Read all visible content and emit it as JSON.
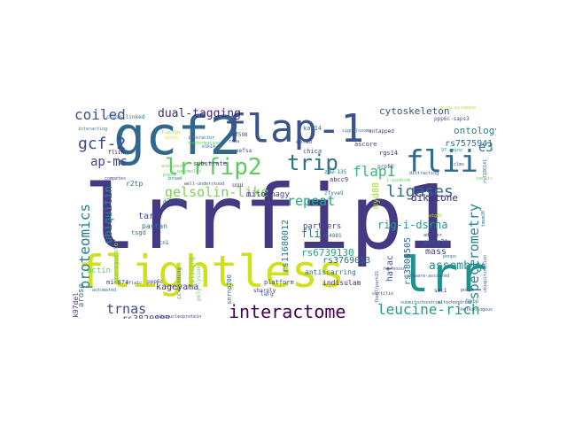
{
  "words": [
    {
      "text": "lrrfip1",
      "color": "#443983"
    },
    {
      "text": "flightless",
      "color": "#d0e11c"
    },
    {
      "text": "gcf2",
      "color": "#31688e"
    },
    {
      "text": "flap-1",
      "color": "#3b528b"
    },
    {
      "text": "lrr",
      "color": "#21918c"
    },
    {
      "text": "flii",
      "color": "#31688e"
    },
    {
      "text": "lrrfip2",
      "color": "#5ec962"
    },
    {
      "text": "interactome",
      "color": "#440154"
    },
    {
      "text": "trip",
      "color": "#2c728e"
    },
    {
      "text": "proteomics",
      "color": "#287c8e"
    },
    {
      "text": "gelsolin-like",
      "color": "#7ad151"
    },
    {
      "text": "spectrometry",
      "color": "#26828e"
    },
    {
      "text": "gcf-2",
      "color": "#3e4a89"
    },
    {
      "text": "coiled",
      "color": "#3b528b"
    },
    {
      "text": "ligases",
      "color": "#31688e"
    },
    {
      "text": "leucine-rich",
      "color": "#1f9e89"
    },
    {
      "text": "trnas",
      "color": "#3e4a89"
    },
    {
      "text": "repeat",
      "color": "#22a884"
    },
    {
      "text": "flap1",
      "color": "#35b779"
    },
    {
      "text": "e3",
      "color": "#2a788e"
    },
    {
      "text": "assembly",
      "color": "#21918c"
    },
    {
      "text": "dual-tagging",
      "color": "#482878"
    },
    {
      "text": "ubiquitin",
      "color": "#23888e"
    },
    {
      "text": "ap-ms",
      "color": "#414487"
    },
    {
      "text": "fli",
      "color": "#2a788e"
    },
    {
      "text": "rig-i-dsrna",
      "color": "#1f9a8a"
    },
    {
      "text": "cytoskeleton",
      "color": "#3b528b"
    },
    {
      "text": "diketone",
      "color": "#482475"
    },
    {
      "text": "ontology",
      "color": "#26828e"
    },
    {
      "text": "rs7575941",
      "color": "#2d708e"
    },
    {
      "text": "rs6739130",
      "color": "#20a386"
    },
    {
      "text": "rs3769053",
      "color": "#31688e"
    },
    {
      "text": "rs3820808",
      "color": "#3e4a89"
    },
    {
      "text": "kageyama",
      "color": "#46337e"
    },
    {
      "text": "rs11680012",
      "color": "#2a788e"
    },
    {
      "text": "rs3806505",
      "color": "#2e6e8e"
    },
    {
      "text": "hatac",
      "color": "#3b528b"
    },
    {
      "text": "myd88",
      "color": "#a5db36"
    },
    {
      "text": "mass",
      "color": "#404688"
    },
    {
      "text": "partners",
      "color": "#3f4889"
    },
    {
      "text": "ubiquitin",
      "color": "#23888e"
    },
    {
      "text": "tar",
      "color": "#414487"
    },
    {
      "text": "mitophagy",
      "color": "#443983"
    },
    {
      "text": "indisulam",
      "color": "#472c7a"
    },
    {
      "text": "antiscarring",
      "color": "#2d708e"
    },
    {
      "text": "arose",
      "color": "#2a788e"
    },
    {
      "text": "actin",
      "color": "#5ec962"
    },
    {
      "text": "r2tp",
      "color": "#31688e"
    },
    {
      "text": "pastan",
      "color": "#2c728e"
    },
    {
      "text": "dcun1d1",
      "color": "#3b528b"
    },
    {
      "text": "q96_k97del",
      "color": "#443983"
    },
    {
      "text": "ackr3b",
      "color": "#3b528b"
    },
    {
      "text": "rgs14",
      "color": "#46337e"
    },
    {
      "text": "kat14",
      "color": "#2c728e"
    },
    {
      "text": "chica",
      "color": "#3e4a89"
    },
    {
      "text": "eofad",
      "color": "#3b528b"
    },
    {
      "text": "ascore",
      "color": "#414487"
    },
    {
      "text": "zfyve9",
      "color": "#2a788e"
    },
    {
      "text": "substrate",
      "color": "#443983"
    },
    {
      "text": "platform",
      "color": "#404688"
    },
    {
      "text": "sharply",
      "color": "#46337e"
    },
    {
      "text": "larg",
      "color": "#3b528b"
    },
    {
      "text": "splicing",
      "color": "#7ad151"
    },
    {
      "text": "poly-lysine",
      "color": "#5ec962"
    },
    {
      "text": "mir874",
      "color": "#3e4a89"
    },
    {
      "text": "untapped",
      "color": "#443983"
    },
    {
      "text": "cross-linked",
      "color": "#2c728e"
    },
    {
      "text": "uuu",
      "color": "#3e4a89"
    },
    {
      "text": "abcc9",
      "color": "#482878"
    },
    {
      "text": "zdw-135",
      "color": "#2a788e"
    },
    {
      "text": "prpf8",
      "color": "#3b528b"
    },
    {
      "text": "snrnp200",
      "color": "#31688e"
    },
    {
      "text": "rs4881",
      "color": "#2a788e"
    },
    {
      "text": "bioregulator",
      "color": "#7ad151"
    },
    {
      "text": "eefsa",
      "color": "#3b528b"
    },
    {
      "text": "fliih",
      "color": "#440154"
    },
    {
      "text": "tsgd",
      "color": "#2c728e"
    },
    {
      "text": "dcn1",
      "color": "#3e4a89"
    },
    {
      "text": "ppp6c",
      "color": "#46337e"
    },
    {
      "text": "ppp6c-saps3",
      "color": "#3b528b"
    },
    {
      "text": "smc1",
      "color": "#443983"
    },
    {
      "text": "hpbp",
      "color": "#2a788e"
    },
    {
      "text": "0.65-kilobase",
      "color": "#b5de2b"
    },
    {
      "text": "interacting",
      "color": "#2a788e"
    },
    {
      "text": "signalosome",
      "color": "#31688e"
    },
    {
      "text": "97-amino",
      "color": "#21918c"
    },
    {
      "text": "repressor",
      "color": "#3b528b"
    },
    {
      "text": "adaptor",
      "color": "#414487"
    },
    {
      "text": "software-assisted",
      "color": "#3b528b"
    },
    {
      "text": "submitochondrial",
      "color": "#2a788e"
    },
    {
      "text": "cortilin",
      "color": "#46337e"
    },
    {
      "text": "cc-binding",
      "color": "#2c728e"
    },
    {
      "text": "zmf598",
      "color": "#3b528b"
    },
    {
      "text": "rrna",
      "color": "#3e4a89"
    },
    {
      "text": "elk14",
      "color": "#2a788e"
    },
    {
      "text": "fbxo7/park15",
      "color": "#3b528b"
    },
    {
      "text": "rs7186141",
      "color": "#31688e"
    },
    {
      "text": "tmem30",
      "color": "#2a788e"
    },
    {
      "text": "clms",
      "color": "#3e4a89"
    },
    {
      "text": "atg16",
      "color": "#b5de2b"
    },
    {
      "text": "efla1c",
      "color": "#3e4a89"
    },
    {
      "text": "prefx",
      "color": "#5ec962"
    },
    {
      "text": "f-actin",
      "color": "#a5db36"
    },
    {
      "text": "vitro",
      "color": "#d2e21b"
    },
    {
      "text": "interactor",
      "color": "#31688e"
    },
    {
      "text": "conformation",
      "color": "#5ec962"
    },
    {
      "text": "ubiquitination",
      "color": "#3b528b"
    },
    {
      "text": "pnnpo",
      "color": "#2a788e"
    },
    {
      "text": "competes",
      "color": "#3e4a89"
    },
    {
      "text": "analyzed",
      "color": "#7ad151"
    },
    {
      "text": "nanomolar",
      "color": "#5ec962"
    },
    {
      "text": "broad",
      "color": "#2c728e"
    },
    {
      "text": "well-understood",
      "color": "#3e4a89"
    },
    {
      "text": "distracting",
      "color": "#3b528b"
    },
    {
      "text": "automated",
      "color": "#2a788e"
    },
    {
      "text": "l-isoform",
      "color": "#5ec962"
    },
    {
      "text": "neonic",
      "color": "#7ad151"
    },
    {
      "text": "ribonucleoprotein",
      "color": "#414487"
    },
    {
      "text": "mitochondrial",
      "color": "#3b528b"
    },
    {
      "text": "heterologous",
      "color": "#3b528b"
    },
    {
      "text": "polyb",
      "color": "#3e4a89"
    }
  ]
}
